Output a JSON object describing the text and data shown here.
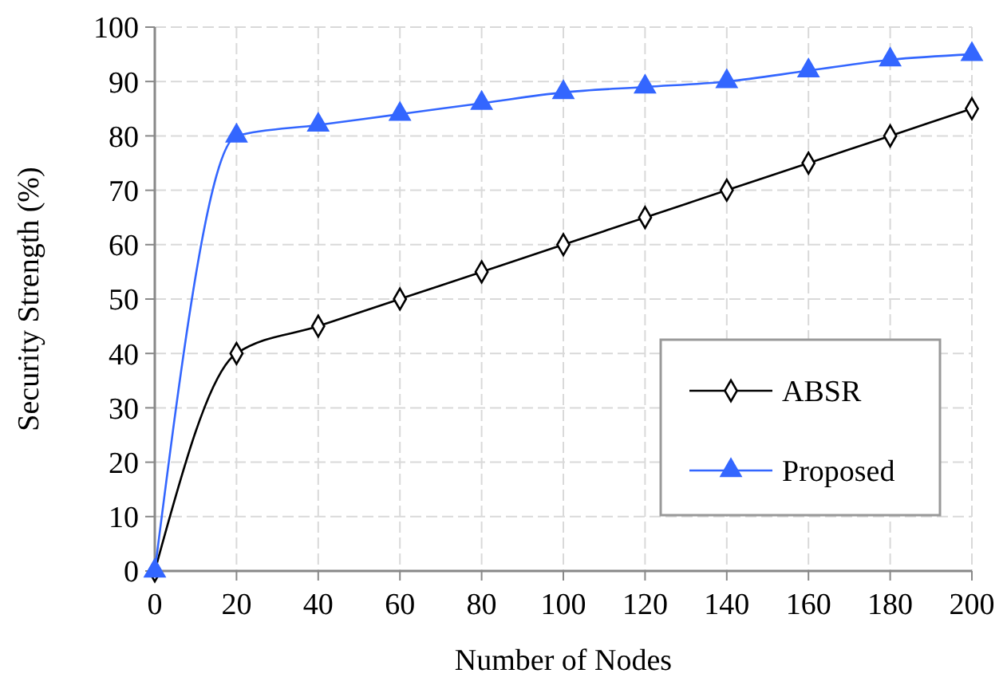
{
  "chart_data": {
    "type": "line",
    "xlabel": "Number of Nodes",
    "ylabel": "Security Strength (%)",
    "x": [
      0,
      20,
      40,
      60,
      80,
      100,
      120,
      140,
      160,
      180,
      200
    ],
    "series": [
      {
        "name": "ABSR",
        "color": "#000000",
        "marker": "diamond",
        "values": [
          0,
          40,
          45,
          50,
          55,
          60,
          65,
          70,
          75,
          80,
          85
        ]
      },
      {
        "name": "Proposed",
        "color": "#3366ff",
        "marker": "triangle",
        "values": [
          0,
          80,
          82,
          84,
          86,
          88,
          89,
          90,
          92,
          94,
          95
        ]
      }
    ],
    "xlim": [
      0,
      200
    ],
    "xticks": [
      0,
      20,
      40,
      60,
      80,
      100,
      120,
      140,
      160,
      180,
      200
    ],
    "ylim": [
      0,
      100
    ],
    "yticks": [
      0,
      10,
      20,
      30,
      40,
      50,
      60,
      70,
      80,
      90,
      100
    ],
    "grid": true,
    "legend": "bottom right",
    "line_style": "solid"
  }
}
